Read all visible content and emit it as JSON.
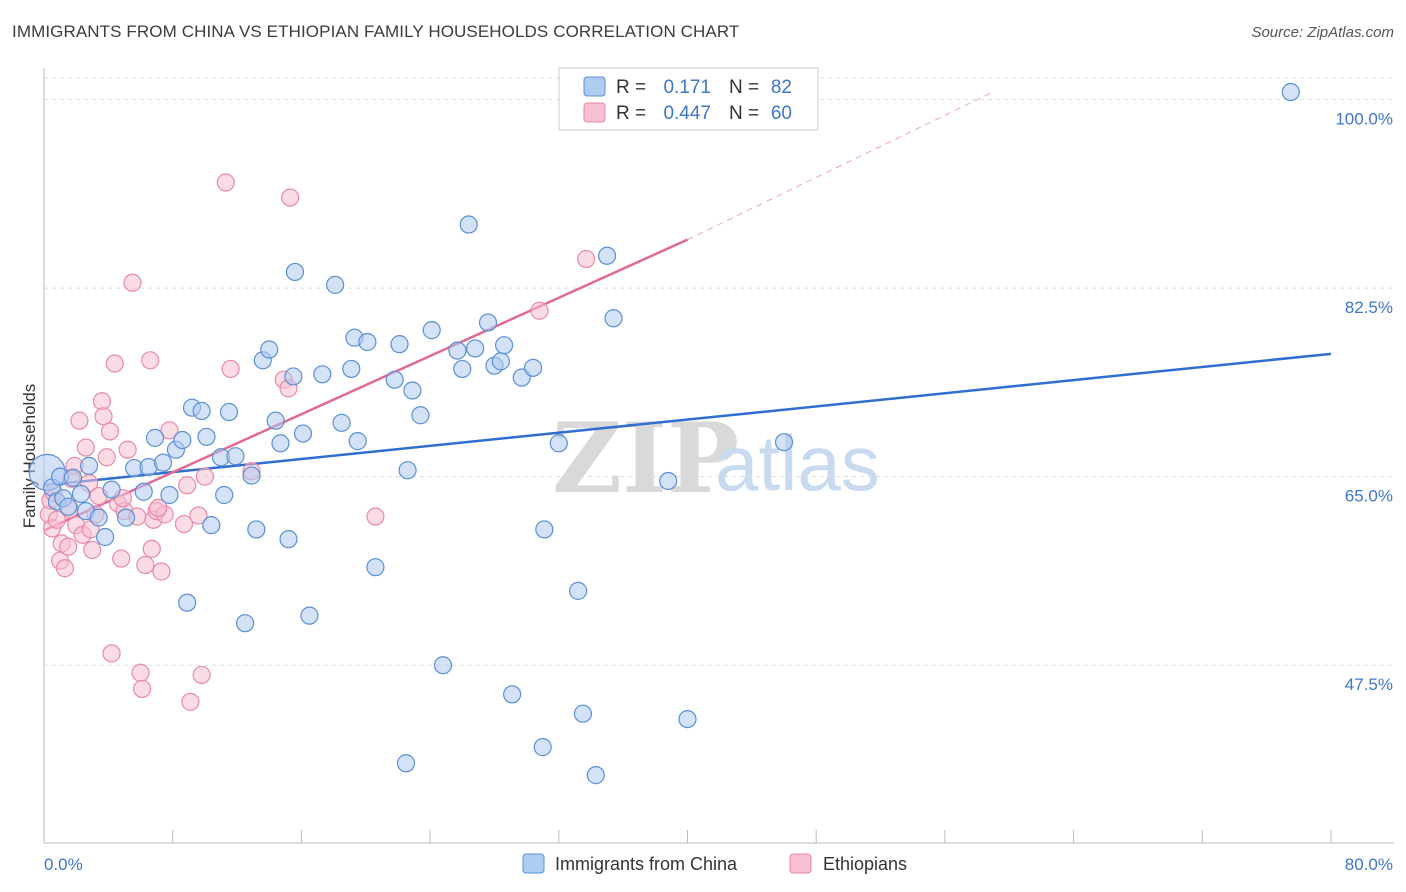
{
  "header": {
    "title": "IMMIGRANTS FROM CHINA VS ETHIOPIAN FAMILY HOUSEHOLDS CORRELATION CHART",
    "source": "Source: ZipAtlas.com"
  },
  "legend": {
    "china": {
      "r_label": "R =",
      "r_value": "0.171",
      "n_label": "N =",
      "n_value": "82"
    },
    "ethiopian": {
      "r_label": "R =",
      "r_value": "0.447",
      "n_label": "N =",
      "n_value": "60"
    }
  },
  "bottom_legend": {
    "china": "Immigrants from China",
    "ethiopian": "Ethiopians"
  },
  "watermark": {
    "zip": "ZIP",
    "atlas": "atlas"
  },
  "colors": {
    "china_fill": "#aecbf0",
    "china_stroke": "#5b8fd6",
    "china_line": "#2f6fcf",
    "eth_fill": "#f7bfd0",
    "eth_stroke": "#e88aa8",
    "eth_line": "#e06a95",
    "grid": "#dddddd",
    "axis_text": "#3e76c9"
  },
  "chart_data": {
    "type": "scatter",
    "title": "IMMIGRANTS FROM CHINA VS ETHIOPIAN FAMILY HOUSEHOLDS CORRELATION CHART",
    "xlabel": "",
    "ylabel": "Family Households",
    "xlim": [
      0,
      80
    ],
    "ylim": [
      31,
      102
    ],
    "x_tick_labels": [
      "0.0%",
      "80.0%"
    ],
    "y_ticks": [
      47.5,
      65.0,
      82.5,
      100.0
    ],
    "y_tick_labels": [
      "47.5%",
      "65.0%",
      "82.5%",
      "100.0%"
    ],
    "grid": true,
    "series": [
      {
        "name": "Immigrants from China",
        "r": 0.171,
        "n": 82,
        "trend": {
          "x0": 0,
          "y0": 64.2,
          "x1": 80,
          "y1": 76.4
        },
        "points": [
          [
            0.2,
            65.4
          ],
          [
            0.5,
            64.0
          ],
          [
            0.8,
            62.7
          ],
          [
            1.0,
            65.0
          ],
          [
            1.2,
            63.0
          ],
          [
            1.5,
            62.2
          ],
          [
            1.8,
            64.9
          ],
          [
            2.3,
            63.4
          ],
          [
            2.6,
            61.8
          ],
          [
            2.8,
            66.0
          ],
          [
            3.4,
            61.2
          ],
          [
            3.8,
            59.4
          ],
          [
            4.2,
            63.8
          ],
          [
            5.1,
            61.2
          ],
          [
            5.6,
            65.8
          ],
          [
            6.2,
            63.6
          ],
          [
            6.5,
            65.9
          ],
          [
            6.9,
            68.6
          ],
          [
            7.4,
            66.3
          ],
          [
            7.8,
            63.3
          ],
          [
            8.2,
            67.5
          ],
          [
            8.6,
            68.4
          ],
          [
            8.9,
            53.3
          ],
          [
            9.2,
            71.4
          ],
          [
            9.8,
            71.1
          ],
          [
            10.1,
            68.7
          ],
          [
            10.4,
            60.5
          ],
          [
            11.0,
            66.8
          ],
          [
            11.2,
            63.3
          ],
          [
            11.5,
            71.0
          ],
          [
            11.9,
            66.9
          ],
          [
            12.5,
            51.4
          ],
          [
            12.9,
            65.1
          ],
          [
            13.2,
            60.1
          ],
          [
            13.6,
            75.8
          ],
          [
            14.0,
            76.8
          ],
          [
            14.4,
            70.2
          ],
          [
            14.7,
            68.1
          ],
          [
            15.2,
            59.2
          ],
          [
            15.5,
            74.3
          ],
          [
            15.6,
            84.0
          ],
          [
            16.1,
            69.0
          ],
          [
            16.5,
            52.1
          ],
          [
            17.3,
            74.5
          ],
          [
            18.1,
            82.8
          ],
          [
            18.5,
            70.0
          ],
          [
            19.1,
            75.0
          ],
          [
            19.3,
            77.9
          ],
          [
            19.5,
            68.3
          ],
          [
            20.1,
            77.5
          ],
          [
            20.6,
            56.6
          ],
          [
            21.8,
            74.0
          ],
          [
            22.1,
            77.3
          ],
          [
            22.5,
            38.4
          ],
          [
            22.6,
            65.6
          ],
          [
            22.9,
            73.0
          ],
          [
            23.4,
            70.7
          ],
          [
            24.1,
            78.6
          ],
          [
            24.8,
            47.5
          ],
          [
            25.7,
            76.7
          ],
          [
            26.0,
            75.0
          ],
          [
            26.4,
            88.4
          ],
          [
            26.8,
            76.9
          ],
          [
            27.6,
            79.3
          ],
          [
            28.0,
            75.3
          ],
          [
            28.4,
            75.7
          ],
          [
            28.6,
            77.2
          ],
          [
            29.1,
            44.8
          ],
          [
            29.7,
            74.2
          ],
          [
            30.4,
            75.1
          ],
          [
            31.0,
            39.9
          ],
          [
            31.1,
            60.1
          ],
          [
            32.0,
            68.1
          ],
          [
            33.2,
            54.4
          ],
          [
            33.5,
            43.0
          ],
          [
            34.3,
            37.3
          ],
          [
            35.0,
            85.5
          ],
          [
            35.4,
            79.7
          ],
          [
            38.8,
            64.6
          ],
          [
            40.0,
            42.5
          ],
          [
            46.0,
            68.2
          ],
          [
            77.5,
            100.7
          ]
        ]
      },
      {
        "name": "Ethiopians",
        "r": 0.447,
        "n": 60,
        "trend": {
          "x0": 0,
          "y0": 60.0,
          "x1": 40,
          "y1": 87.0
        },
        "trend_dashed": {
          "x0": 40,
          "y0": 87.0,
          "x1": 59,
          "y1": 100.7
        },
        "points": [
          [
            0.3,
            61.5
          ],
          [
            0.4,
            62.8
          ],
          [
            0.5,
            60.2
          ],
          [
            0.8,
            61.0
          ],
          [
            1.0,
            57.2
          ],
          [
            1.1,
            58.8
          ],
          [
            1.3,
            56.5
          ],
          [
            1.5,
            58.5
          ],
          [
            1.6,
            62.0
          ],
          [
            1.9,
            66.0
          ],
          [
            2.0,
            60.5
          ],
          [
            2.2,
            70.2
          ],
          [
            2.4,
            59.6
          ],
          [
            2.6,
            67.7
          ],
          [
            2.8,
            64.4
          ],
          [
            3.0,
            58.2
          ],
          [
            3.2,
            61.5
          ],
          [
            3.4,
            63.2
          ],
          [
            3.6,
            72.0
          ],
          [
            3.7,
            70.6
          ],
          [
            3.9,
            66.8
          ],
          [
            4.1,
            69.2
          ],
          [
            4.2,
            48.6
          ],
          [
            4.4,
            75.5
          ],
          [
            4.6,
            62.5
          ],
          [
            4.8,
            57.4
          ],
          [
            5.0,
            61.8
          ],
          [
            5.2,
            67.5
          ],
          [
            5.5,
            83.0
          ],
          [
            5.8,
            61.3
          ],
          [
            6.0,
            46.8
          ],
          [
            6.1,
            45.3
          ],
          [
            6.3,
            56.8
          ],
          [
            6.6,
            75.8
          ],
          [
            6.8,
            61.0
          ],
          [
            7.0,
            61.8
          ],
          [
            7.3,
            56.2
          ],
          [
            7.5,
            61.5
          ],
          [
            7.8,
            69.3
          ],
          [
            8.7,
            60.6
          ],
          [
            8.9,
            64.2
          ],
          [
            9.1,
            44.1
          ],
          [
            9.6,
            61.4
          ],
          [
            9.8,
            46.6
          ],
          [
            10.0,
            65.0
          ],
          [
            11.3,
            92.3
          ],
          [
            11.6,
            75.0
          ],
          [
            12.9,
            65.5
          ],
          [
            14.9,
            74.0
          ],
          [
            15.2,
            73.2
          ],
          [
            15.3,
            90.9
          ],
          [
            20.6,
            61.3
          ],
          [
            30.8,
            80.4
          ],
          [
            33.7,
            85.2
          ],
          [
            0.6,
            63.5
          ],
          [
            1.7,
            64.8
          ],
          [
            2.9,
            60.1
          ],
          [
            4.9,
            63.0
          ],
          [
            6.7,
            58.3
          ],
          [
            7.1,
            62.1
          ]
        ]
      }
    ]
  }
}
